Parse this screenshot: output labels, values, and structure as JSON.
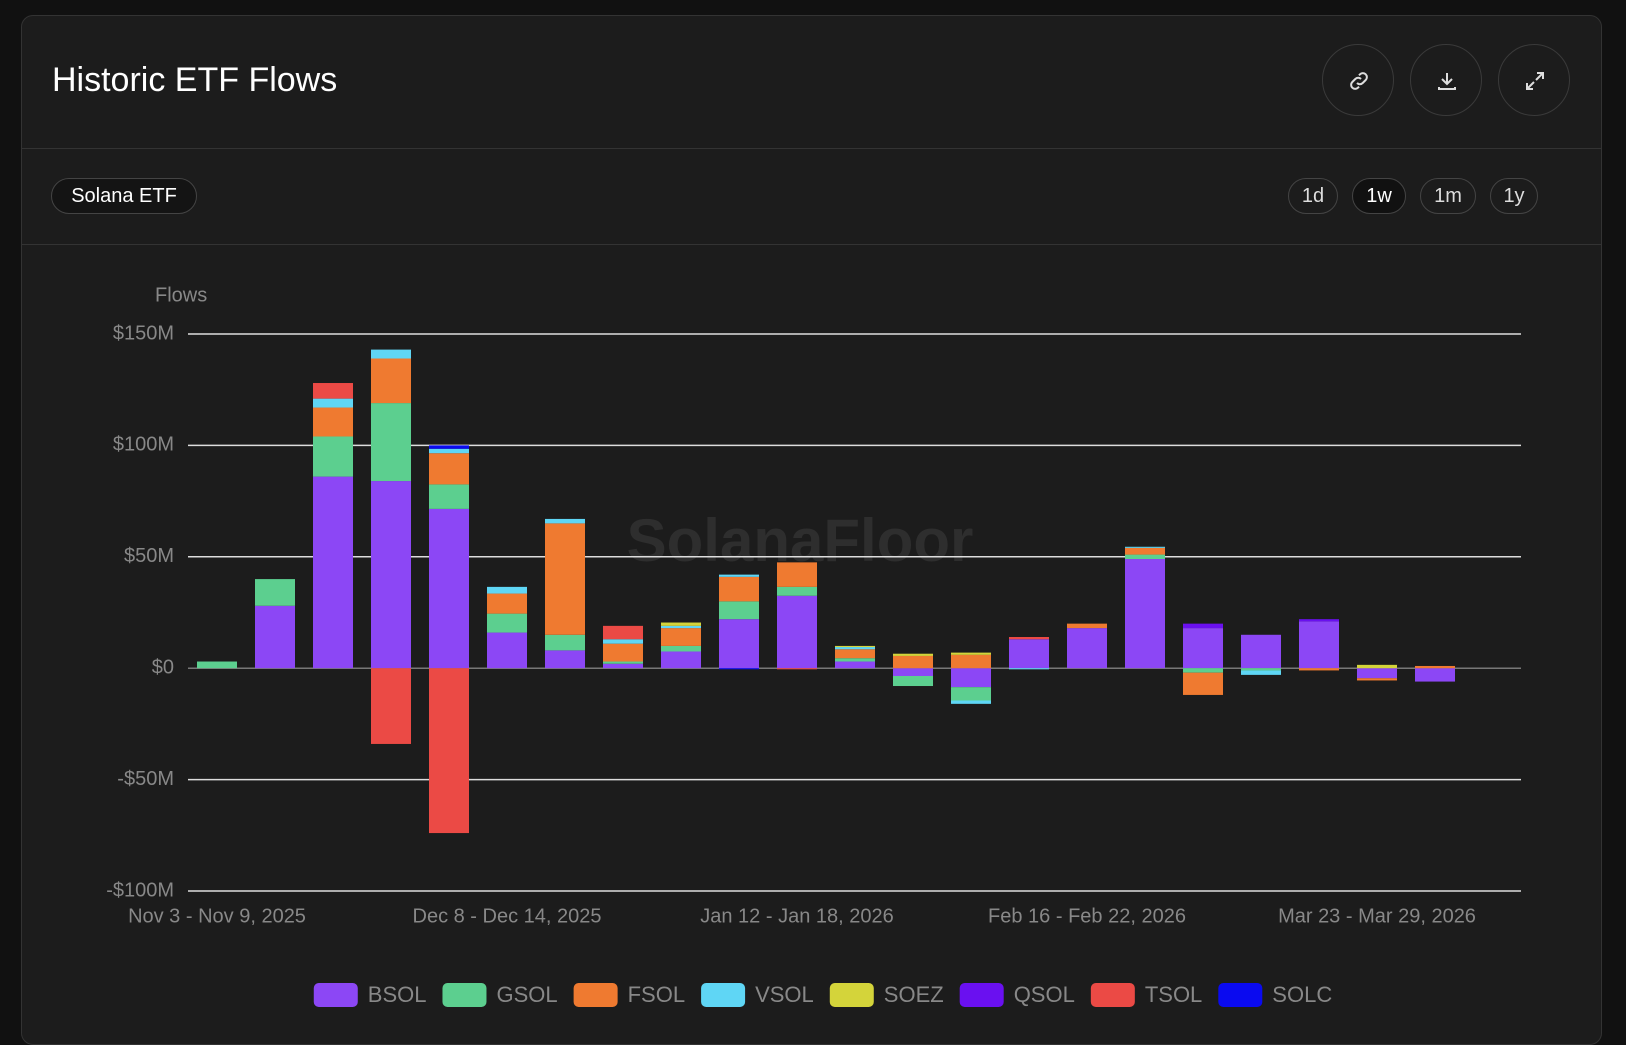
{
  "chart_data": {
    "type": "stacked-bar",
    "title": "Historic ETF Flows",
    "filter": "Solana ETF",
    "ranges": [
      "1d",
      "1w",
      "1m",
      "1y"
    ],
    "selected_range": "1w",
    "y_label": "Flows",
    "watermark": "SolanaFloor",
    "categories": [
      "Nov 3 - Nov 9, 2025",
      null,
      null,
      null,
      null,
      "Dec 8 - Dec 14, 2025",
      null,
      null,
      null,
      null,
      "Jan 12 - Jan 18, 2026",
      null,
      null,
      null,
      null,
      "Feb 16 - Feb 22, 2026",
      null,
      null,
      null,
      null,
      "Mar 23 - Mar 29, 2026",
      null
    ],
    "series": [
      {
        "name": "BSOL",
        "color": "#8c47f5",
        "values": [
          0,
          28,
          86,
          84,
          71.5,
          16,
          8,
          2,
          7.5,
          22,
          32.5,
          3,
          -3.5,
          -8.5,
          13,
          18,
          49,
          18,
          15,
          21,
          -4.5,
          -6
        ]
      },
      {
        "name": "GSOL",
        "color": "#5ccf8f",
        "values": [
          3,
          12,
          18,
          35,
          11,
          8.5,
          7,
          1,
          2.5,
          8,
          4,
          1.5,
          -4.5,
          -6,
          0,
          0,
          2,
          -2,
          -1,
          0,
          0,
          0
        ]
      },
      {
        "name": "FSOL",
        "color": "#ef7a30",
        "values": [
          0,
          0,
          13,
          20,
          14,
          9,
          50,
          8,
          8,
          11,
          11,
          4,
          5.5,
          6,
          0,
          2,
          3,
          -10,
          0,
          -1,
          -1,
          1
        ]
      },
      {
        "name": "VSOL",
        "color": "#5fd6f5",
        "values": [
          0,
          0,
          4,
          4,
          2,
          3,
          2,
          2,
          1,
          1,
          0,
          1,
          0,
          -1.5,
          -0.5,
          0,
          0.5,
          0,
          -2,
          0,
          0,
          0
        ]
      },
      {
        "name": "SOEZ",
        "color": "#d4d43a",
        "values": [
          0,
          0,
          0,
          0,
          0,
          0,
          0,
          0,
          1.5,
          0,
          0,
          0.5,
          1,
          1,
          0,
          0,
          0,
          0,
          0,
          0,
          1.5,
          0
        ]
      },
      {
        "name": "QSOL",
        "color": "#6a10f0",
        "values": [
          0,
          0,
          0,
          0,
          0,
          0,
          0,
          0,
          0,
          0,
          0,
          0,
          0,
          0,
          0,
          0,
          0,
          2,
          0,
          1,
          0,
          0
        ]
      },
      {
        "name": "TSOL",
        "color": "#eb4a45",
        "values": [
          0,
          0,
          7,
          -34,
          -74,
          0,
          0,
          6,
          0,
          0,
          -0.5,
          0,
          0,
          0,
          1,
          0,
          0,
          0,
          0,
          0,
          0,
          0
        ]
      },
      {
        "name": "SOLC",
        "color": "#0a0af0",
        "values": [
          0,
          0,
          0,
          0,
          1.5,
          0,
          0,
          0,
          0,
          -0.5,
          0,
          0,
          0,
          0,
          0,
          0,
          0,
          0,
          0,
          0,
          0,
          0
        ]
      }
    ],
    "ylim": [
      -100,
      150
    ],
    "yticks": [
      {
        "value": -100,
        "label": "-$100M"
      },
      {
        "value": -50,
        "label": "-$50M"
      },
      {
        "value": 0,
        "label": "$0"
      },
      {
        "value": 50,
        "label": "$50M"
      },
      {
        "value": 100,
        "label": "$100M"
      },
      {
        "value": 150,
        "label": "$150M"
      }
    ],
    "grid": true
  }
}
